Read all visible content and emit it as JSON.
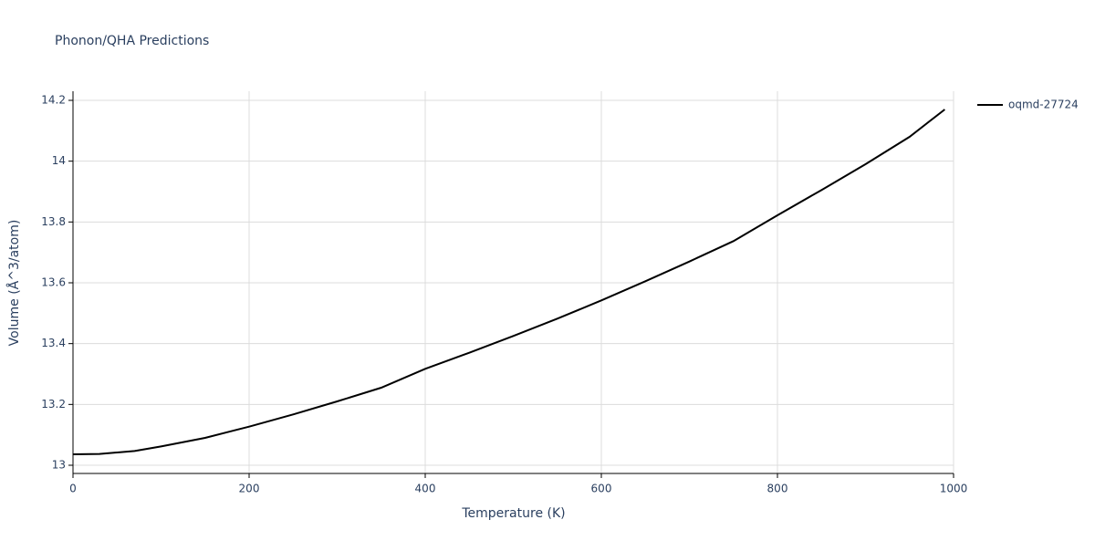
{
  "chart_data": {
    "type": "line",
    "title": "Phonon/QHA Predictions",
    "x_label": "Temperature (K)",
    "y_label": "Volume (Å^3/atom)",
    "x": [
      0,
      30,
      70,
      100,
      150,
      200,
      250,
      300,
      350,
      400,
      450,
      500,
      550,
      600,
      650,
      700,
      750,
      800,
      850,
      900,
      950,
      990
    ],
    "series": [
      {
        "name": "oqmd-27724",
        "color": "#000000",
        "values": [
          13.036,
          13.037,
          13.047,
          13.062,
          13.09,
          13.127,
          13.167,
          13.21,
          13.255,
          13.317,
          13.37,
          13.425,
          13.482,
          13.542,
          13.605,
          13.67,
          13.737,
          13.822,
          13.905,
          13.99,
          14.08,
          14.17
        ]
      }
    ],
    "xlim": [
      0,
      1000
    ],
    "xticks": [
      0,
      200,
      400,
      600,
      800,
      1000
    ],
    "ylim": [
      12.973,
      14.23
    ],
    "yticks": [
      13,
      13.2,
      13.4,
      13.6,
      13.8,
      14,
      14.2
    ],
    "grid": true,
    "legend": "right"
  }
}
